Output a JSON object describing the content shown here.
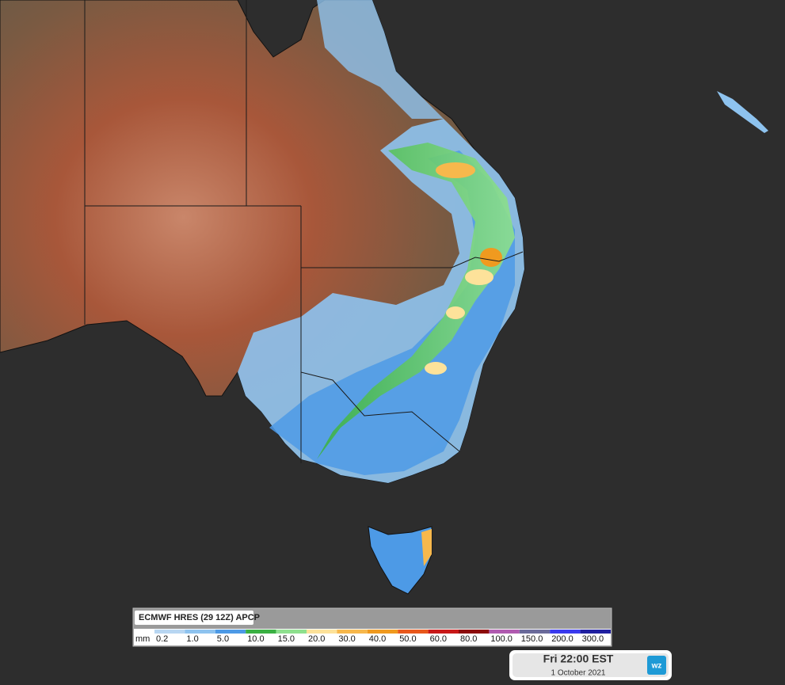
{
  "legend": {
    "title": "ECMWF HRES (29 12Z) APCP",
    "unit": "mm",
    "stops": [
      {
        "label": "0.2",
        "color": "#b8d6f2"
      },
      {
        "label": "1.0",
        "color": "#8ec3ef"
      },
      {
        "label": "5.0",
        "color": "#4d9ae6"
      },
      {
        "label": "10.0",
        "color": "#3ab043"
      },
      {
        "label": "15.0",
        "color": "#8ee08e"
      },
      {
        "label": "20.0",
        "color": "#fde29a"
      },
      {
        "label": "30.0",
        "color": "#f7b84c"
      },
      {
        "label": "40.0",
        "color": "#f09a1f"
      },
      {
        "label": "50.0",
        "color": "#e8581c"
      },
      {
        "label": "60.0",
        "color": "#c81818"
      },
      {
        "label": "80.0",
        "color": "#8c0b0b"
      },
      {
        "label": "100.0",
        "color": "#b05ab0"
      },
      {
        "label": "150.0",
        "color": "#6a6a9a"
      },
      {
        "label": "200.0",
        "color": "#3a3aee"
      },
      {
        "label": "300.0",
        "color": "#2020a0"
      }
    ]
  },
  "timestamp": {
    "time": "Fri 22:00 EST",
    "date": "1 October 2021"
  },
  "logo": "wz"
}
